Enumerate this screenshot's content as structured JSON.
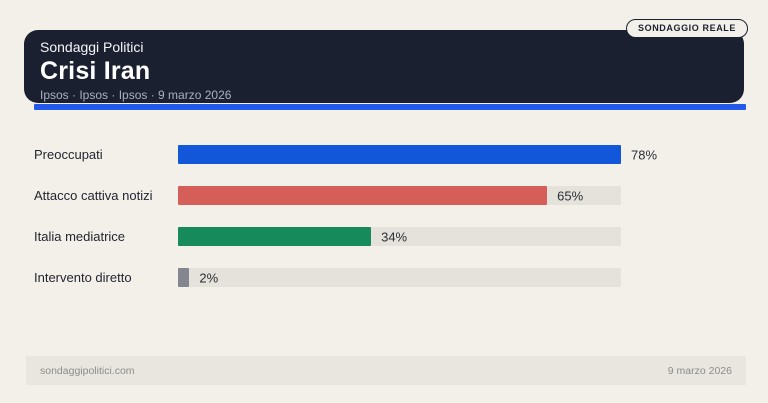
{
  "page": {
    "background": "#f3efe9"
  },
  "header": {
    "badge": "SONDAGGIO REALE",
    "kicker": "Sondaggi Politici",
    "title": "Crisi Iran",
    "subtitle": "Ipsos · Ipsos · Ipsos · 9 marzo 2026",
    "card_color": "#1b2031",
    "accent_color": "#2259e8"
  },
  "chart_data": {
    "type": "bar",
    "orientation": "horizontal",
    "title": "Crisi Iran",
    "categories": [
      "Preoccupati",
      "Attacco cattiva notizi",
      "Italia mediatrice",
      "Intervento diretto"
    ],
    "values": [
      78,
      65,
      34,
      2
    ],
    "value_labels": [
      "78%",
      "65%",
      "34%",
      "2%"
    ],
    "unit": "%",
    "max_value": 78,
    "bar_colors": [
      "#1257d9",
      "#d65e59",
      "#178a5b",
      "#83868e"
    ],
    "track_color": "#e5e2db",
    "grid": false,
    "legend": false
  },
  "footer": {
    "source": "sondaggipolitici.com",
    "date": "9 marzo 2026"
  }
}
